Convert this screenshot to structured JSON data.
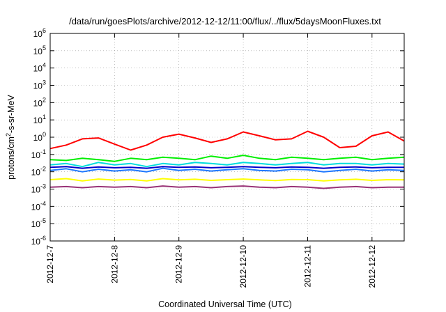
{
  "chart_data": {
    "type": "line",
    "title": "/data/run/goesPlots/archive/2012-12-12/11:00/flux/../flux/5daysMoonFluxes.txt",
    "xlabel": "Coordinated Universal Time (UTC)",
    "ylabel_parts": {
      "pre": "protons/cm",
      "sup": "2",
      "post": "-s-sr-MeV"
    },
    "y_scale": "log",
    "ylim": [
      1e-06,
      1000000.0
    ],
    "y_ticks": [
      {
        "value": 1e-06,
        "base": "10",
        "exp": "-6"
      },
      {
        "value": 1e-05,
        "base": "10",
        "exp": "-5"
      },
      {
        "value": 0.0001,
        "base": "10",
        "exp": "-4"
      },
      {
        "value": 0.001,
        "base": "10",
        "exp": "-3"
      },
      {
        "value": 0.01,
        "base": "10",
        "exp": "-2"
      },
      {
        "value": 0.1,
        "base": "10",
        "exp": "-1"
      },
      {
        "value": 1,
        "base": "10",
        "exp": "0"
      },
      {
        "value": 10,
        "base": "10",
        "exp": "1"
      },
      {
        "value": 100,
        "base": "10",
        "exp": "2"
      },
      {
        "value": 1000,
        "base": "10",
        "exp": "3"
      },
      {
        "value": 10000,
        "base": "10",
        "exp": "4"
      },
      {
        "value": 100000,
        "base": "10",
        "exp": "5"
      },
      {
        "value": 1000000,
        "base": "10",
        "exp": "6"
      }
    ],
    "xlim": [
      "2012-12-07",
      "2012-12-12T12:00"
    ],
    "x_ticks": [
      "2012-12-7",
      "2012-12-8",
      "2012-12-9",
      "2012-12-10",
      "2012-12-11",
      "2012-12-12"
    ],
    "grid": true,
    "legend": "none",
    "series": [
      {
        "color": "#ff0000",
        "x": [
          "2012-12-07T00:00",
          "2012-12-07T06:00",
          "2012-12-07T12:00",
          "2012-12-07T18:00",
          "2012-12-08T00:00",
          "2012-12-08T06:00",
          "2012-12-08T12:00",
          "2012-12-08T18:00",
          "2012-12-09T00:00",
          "2012-12-09T06:00",
          "2012-12-09T12:00",
          "2012-12-09T18:00",
          "2012-12-10T00:00",
          "2012-12-10T06:00",
          "2012-12-10T12:00",
          "2012-12-10T18:00",
          "2012-12-11T00:00",
          "2012-12-11T06:00",
          "2012-12-11T12:00",
          "2012-12-11T18:00",
          "2012-12-12T00:00",
          "2012-12-12T06:00",
          "2012-12-12T12:00"
        ],
        "y": [
          0.22,
          0.35,
          0.8,
          0.9,
          0.4,
          0.18,
          0.35,
          1.0,
          1.5,
          0.9,
          0.5,
          0.8,
          2.0,
          1.2,
          0.7,
          0.8,
          2.2,
          1.0,
          0.25,
          0.3,
          1.2,
          2.0,
          0.6
        ]
      },
      {
        "color": "#00ee00",
        "x": [
          "2012-12-07T00:00",
          "2012-12-07T06:00",
          "2012-12-07T12:00",
          "2012-12-07T18:00",
          "2012-12-08T00:00",
          "2012-12-08T06:00",
          "2012-12-08T12:00",
          "2012-12-08T18:00",
          "2012-12-09T00:00",
          "2012-12-09T06:00",
          "2012-12-09T12:00",
          "2012-12-09T18:00",
          "2012-12-10T00:00",
          "2012-12-10T06:00",
          "2012-12-10T12:00",
          "2012-12-10T18:00",
          "2012-12-11T00:00",
          "2012-12-11T06:00",
          "2012-12-11T12:00",
          "2012-12-11T18:00",
          "2012-12-12T00:00",
          "2012-12-12T06:00",
          "2012-12-12T12:00"
        ],
        "y": [
          0.05,
          0.045,
          0.06,
          0.05,
          0.04,
          0.06,
          0.05,
          0.07,
          0.06,
          0.05,
          0.08,
          0.06,
          0.09,
          0.06,
          0.05,
          0.07,
          0.06,
          0.05,
          0.06,
          0.07,
          0.05,
          0.06,
          0.07
        ]
      },
      {
        "color": "#00dddd",
        "x": [
          "2012-12-07T00:00",
          "2012-12-07T06:00",
          "2012-12-07T12:00",
          "2012-12-07T18:00",
          "2012-12-08T00:00",
          "2012-12-08T06:00",
          "2012-12-08T12:00",
          "2012-12-08T18:00",
          "2012-12-09T00:00",
          "2012-12-09T06:00",
          "2012-12-09T12:00",
          "2012-12-09T18:00",
          "2012-12-10T00:00",
          "2012-12-10T06:00",
          "2012-12-10T12:00",
          "2012-12-10T18:00",
          "2012-12-11T00:00",
          "2012-12-11T06:00",
          "2012-12-11T12:00",
          "2012-12-11T18:00",
          "2012-12-12T00:00",
          "2012-12-12T06:00",
          "2012-12-12T12:00"
        ],
        "y": [
          0.025,
          0.03,
          0.02,
          0.035,
          0.025,
          0.03,
          0.02,
          0.03,
          0.025,
          0.035,
          0.03,
          0.025,
          0.035,
          0.03,
          0.025,
          0.03,
          0.035,
          0.025,
          0.03,
          0.03,
          0.025,
          0.03,
          0.028
        ]
      },
      {
        "color": "#1e78ff",
        "x": [
          "2012-12-07T00:00",
          "2012-12-07T06:00",
          "2012-12-07T12:00",
          "2012-12-07T18:00",
          "2012-12-08T00:00",
          "2012-12-08T06:00",
          "2012-12-08T12:00",
          "2012-12-08T18:00",
          "2012-12-09T00:00",
          "2012-12-09T06:00",
          "2012-12-09T12:00",
          "2012-12-09T18:00",
          "2012-12-10T00:00",
          "2012-12-10T06:00",
          "2012-12-10T12:00",
          "2012-12-10T18:00",
          "2012-12-11T00:00",
          "2012-12-11T06:00",
          "2012-12-11T12:00",
          "2012-12-11T18:00",
          "2012-12-12T00:00",
          "2012-12-12T06:00",
          "2012-12-12T12:00"
        ],
        "y": [
          0.012,
          0.015,
          0.01,
          0.014,
          0.011,
          0.013,
          0.01,
          0.016,
          0.012,
          0.014,
          0.011,
          0.013,
          0.015,
          0.012,
          0.011,
          0.014,
          0.013,
          0.01,
          0.012,
          0.014,
          0.011,
          0.013,
          0.012
        ]
      },
      {
        "color": "#0000cc",
        "x": [
          "2012-12-07T00:00",
          "2012-12-07T06:00",
          "2012-12-07T12:00",
          "2012-12-07T18:00",
          "2012-12-08T00:00",
          "2012-12-08T06:00",
          "2012-12-08T12:00",
          "2012-12-08T18:00",
          "2012-12-09T00:00",
          "2012-12-09T06:00",
          "2012-12-09T12:00",
          "2012-12-09T18:00",
          "2012-12-10T00:00",
          "2012-12-10T06:00",
          "2012-12-10T12:00",
          "2012-12-10T18:00",
          "2012-12-11T00:00",
          "2012-12-11T06:00",
          "2012-12-11T12:00",
          "2012-12-11T18:00",
          "2012-12-12T00:00",
          "2012-12-12T06:00",
          "2012-12-12T12:00"
        ],
        "y": [
          0.018,
          0.02,
          0.016,
          0.019,
          0.017,
          0.018,
          0.016,
          0.02,
          0.018,
          0.019,
          0.017,
          0.018,
          0.02,
          0.018,
          0.017,
          0.019,
          0.018,
          0.016,
          0.018,
          0.019,
          0.017,
          0.018,
          0.018
        ]
      },
      {
        "color": "#ffff00",
        "x": [
          "2012-12-07T00:00",
          "2012-12-07T06:00",
          "2012-12-07T12:00",
          "2012-12-07T18:00",
          "2012-12-08T00:00",
          "2012-12-08T06:00",
          "2012-12-08T12:00",
          "2012-12-08T18:00",
          "2012-12-09T00:00",
          "2012-12-09T06:00",
          "2012-12-09T12:00",
          "2012-12-09T18:00",
          "2012-12-10T00:00",
          "2012-12-10T06:00",
          "2012-12-10T12:00",
          "2012-12-10T18:00",
          "2012-12-11T00:00",
          "2012-12-11T06:00",
          "2012-12-11T12:00",
          "2012-12-11T18:00",
          "2012-12-12T00:00",
          "2012-12-12T06:00",
          "2012-12-12T12:00"
        ],
        "y": [
          0.0035,
          0.004,
          0.003,
          0.0038,
          0.0033,
          0.0036,
          0.003,
          0.004,
          0.0034,
          0.0037,
          0.0032,
          0.0035,
          0.0038,
          0.0034,
          0.0031,
          0.0036,
          0.0035,
          0.003,
          0.0034,
          0.0037,
          0.0032,
          0.0035,
          0.0034
        ]
      },
      {
        "color": "#993377",
        "x": [
          "2012-12-07T00:00",
          "2012-12-07T06:00",
          "2012-12-07T12:00",
          "2012-12-07T18:00",
          "2012-12-08T00:00",
          "2012-12-08T06:00",
          "2012-12-08T12:00",
          "2012-12-08T18:00",
          "2012-12-09T00:00",
          "2012-12-09T06:00",
          "2012-12-09T12:00",
          "2012-12-09T18:00",
          "2012-12-10T00:00",
          "2012-12-10T06:00",
          "2012-12-10T12:00",
          "2012-12-10T18:00",
          "2012-12-11T00:00",
          "2012-12-11T06:00",
          "2012-12-11T12:00",
          "2012-12-11T18:00",
          "2012-12-12T00:00",
          "2012-12-12T06:00",
          "2012-12-12T12:00"
        ],
        "y": [
          0.0013,
          0.0014,
          0.0012,
          0.0014,
          0.0013,
          0.0014,
          0.0012,
          0.0015,
          0.0013,
          0.0014,
          0.0012,
          0.0014,
          0.0015,
          0.0013,
          0.0012,
          0.0014,
          0.0013,
          0.0011,
          0.0013,
          0.0014,
          0.0012,
          0.0013,
          0.0013
        ]
      }
    ]
  }
}
